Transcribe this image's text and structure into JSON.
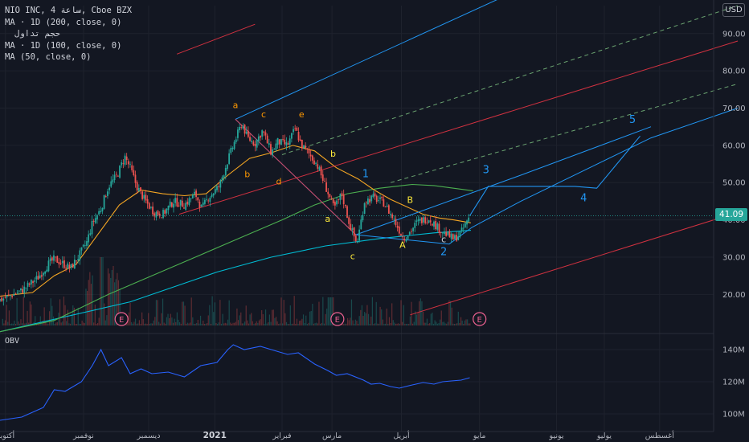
{
  "header": {
    "symbol_line": "NIO INC, 4 ساعة, Cboe BZX",
    "indicators": [
      "MA · 1D (200, close, 0)",
      "حجم تداول",
      "MA · 1D (100, close, 0)",
      "MA (50, close, 0)"
    ]
  },
  "currency_button": "USD",
  "obv_label": "OBV",
  "colors": {
    "background": "#131722",
    "candle_up": "#26a69a",
    "candle_down": "#ef5350",
    "ma50": "#f5a623",
    "ma100": "#4caf50",
    "ma200": "#00bcd4",
    "obv": "#2962ff",
    "pitchfork_blue": "#2196f3",
    "pitchfork_red": "#f23645",
    "wave_orange": "#ff9800",
    "wave_yellow": "#ffeb3b",
    "wave_blue": "#2196f3"
  },
  "chart_data": [
    {
      "type": "candlestick",
      "title": "NIO INC, 4 ساعة, Cboe BZX",
      "y_axis": {
        "side": "right",
        "ylim": [
          9.5,
          97.5
        ],
        "ticks": [
          20,
          30,
          40,
          50,
          60,
          70,
          80,
          90
        ],
        "tick_labels": [
          "20.00",
          "30.00",
          "40.00",
          "50.00",
          "60.00",
          "70.00",
          "80.00",
          "90.00"
        ]
      },
      "x_axis": {
        "labels": [
          "أكتوبر",
          "نوفمبر",
          "ديسمبر",
          "2021",
          "فبراير",
          "مارس",
          "أبريل",
          "مايو",
          "يونيو",
          "يوليو",
          "أغسطس"
        ]
      },
      "last_price": "41.09",
      "price_path": [
        [
          0,
          18.5
        ],
        [
          0.8,
          19.5
        ],
        [
          2,
          21
        ],
        [
          3.5,
          24.5
        ],
        [
          4.4,
          28
        ],
        [
          5,
          29.5
        ],
        [
          5.8,
          28.2
        ],
        [
          6.5,
          27
        ],
        [
          7.2,
          30
        ],
        [
          8,
          34
        ],
        [
          8.5,
          39
        ],
        [
          9.3,
          43
        ],
        [
          10,
          49
        ],
        [
          10.8,
          52
        ],
        [
          11.5,
          57
        ],
        [
          12,
          54
        ],
        [
          12.6,
          49
        ],
        [
          13.4,
          45
        ],
        [
          14.2,
          42
        ],
        [
          15,
          41.5
        ],
        [
          16,
          45
        ],
        [
          17,
          44
        ],
        [
          18,
          47
        ],
        [
          18.6,
          43
        ],
        [
          19.2,
          46
        ],
        [
          20.2,
          49
        ],
        [
          21,
          56
        ],
        [
          21.5,
          60
        ],
        [
          22.3,
          66
        ],
        [
          22.8,
          62
        ],
        [
          23.5,
          60.5
        ],
        [
          24.2,
          64
        ],
        [
          25,
          58
        ],
        [
          25.6,
          61
        ],
        [
          26.5,
          60
        ],
        [
          27.2,
          64.5
        ],
        [
          27.8,
          60
        ],
        [
          28.4,
          58
        ],
        [
          29.2,
          55
        ],
        [
          30,
          49
        ],
        [
          30.8,
          43
        ],
        [
          31.5,
          47
        ],
        [
          32.2,
          39
        ],
        [
          32.9,
          33.5
        ],
        [
          33.6,
          45
        ],
        [
          34.4,
          46
        ],
        [
          35.4,
          44.5
        ],
        [
          36.3,
          40
        ],
        [
          37.2,
          35
        ],
        [
          37.7,
          36.5
        ],
        [
          38.5,
          39.5
        ],
        [
          39.5,
          40.5
        ],
        [
          40.5,
          37.5
        ],
        [
          41.2,
          36
        ],
        [
          41.8,
          34.8
        ],
        [
          42.5,
          36.5
        ],
        [
          43.3,
          41.1
        ]
      ],
      "series": [
        {
          "name": "MA · 1D (200, close, 0)",
          "points": [
            [
              0,
              10
            ],
            [
              12,
              18
            ],
            [
              20,
              26
            ],
            [
              25,
              30
            ],
            [
              30,
              33
            ],
            [
              35,
              35
            ],
            [
              40,
              36.5
            ],
            [
              43.4,
              37.2
            ]
          ]
        },
        {
          "name": "MA · 1D (100, close, 0)",
          "points": [
            [
              0,
              10
            ],
            [
              5,
              13
            ],
            [
              10,
              20
            ],
            [
              14,
              25
            ],
            [
              18,
              30
            ],
            [
              22,
              35
            ],
            [
              26,
              40
            ],
            [
              29,
              44
            ],
            [
              32,
              47
            ],
            [
              35,
              48.5
            ],
            [
              38,
              49.5
            ],
            [
              40,
              49.2
            ],
            [
              43.6,
              47.8
            ]
          ]
        },
        {
          "name": "MA (50, close, 0)",
          "points": [
            [
              0,
              19.5
            ],
            [
              3,
              20.5
            ],
            [
              5,
              25
            ],
            [
              7,
              28
            ],
            [
              9,
              36
            ],
            [
              11,
              44
            ],
            [
              13,
              48
            ],
            [
              15,
              47
            ],
            [
              17,
              46.5
            ],
            [
              19,
              47
            ],
            [
              21,
              52
            ],
            [
              23,
              56.5
            ],
            [
              25,
              58
            ],
            [
              27,
              60
            ],
            [
              29,
              58.5
            ],
            [
              31,
              54
            ],
            [
              33,
              51
            ],
            [
              34.5,
              48
            ],
            [
              36,
              45.5
            ],
            [
              37.5,
              43.5
            ],
            [
              39,
              41.5
            ],
            [
              40.5,
              40.5
            ],
            [
              41.8,
              40
            ],
            [
              43.4,
              39.2
            ]
          ]
        }
      ],
      "volume": {
        "ylim": [
          0,
          1
        ],
        "scale": "relative"
      },
      "earnings_markers": [
        {
          "label": "E",
          "x": 11.2
        },
        {
          "label": "E",
          "x": 31.1
        },
        {
          "label": "E",
          "x": 44.2
        }
      ],
      "pitchfork_blue": {
        "pivot": [
          21.7,
          67
        ],
        "upper_points": [
          [
            21.7,
            67
          ],
          [
            48,
            102
          ]
        ],
        "median_points": [
          [
            32.8,
            36
          ],
          [
            48,
            52
          ],
          [
            60,
            65
          ]
        ],
        "lower_points": [
          [
            32.8,
            36
          ],
          [
            41.4,
            33.5
          ],
          [
            43.5,
            38
          ],
          [
            48,
            45
          ],
          [
            60,
            62
          ],
          [
            68,
            70
          ]
        ]
      },
      "pitchfork_red": {
        "upper_line": [
          [
            16.3,
            84.5
          ],
          [
            23.5,
            92.5
          ]
        ],
        "median_line": [
          [
            16.5,
            41.5
          ],
          [
            68,
            88
          ]
        ],
        "lower_line": [
          [
            37.8,
            14.5
          ],
          [
            68,
            42
          ]
        ],
        "handle": [
          [
            21.7,
            67
          ],
          [
            32.8,
            36
          ]
        ]
      },
      "dashed_lines": [
        {
          "color": "green",
          "points": [
            [
              26,
              57.5
            ],
            [
              68,
              97.5
            ]
          ]
        },
        {
          "color": "green",
          "points": [
            [
              36,
              50
            ],
            [
              68,
              76.5
            ]
          ]
        }
      ],
      "wave_projection": [
        [
          43.3,
          41.1
        ],
        [
          45,
          49
        ],
        [
          53,
          49
        ],
        [
          55,
          48.5
        ],
        [
          59,
          62.5
        ]
      ],
      "annotations": [
        {
          "text": "a",
          "x": 21.7,
          "y": 70,
          "color": "orange"
        },
        {
          "text": "c",
          "x": 24.3,
          "y": 67.5,
          "color": "orange"
        },
        {
          "text": "e",
          "x": 27.8,
          "y": 67.5,
          "color": "orange"
        },
        {
          "text": "b",
          "x": 22.8,
          "y": 51.5,
          "color": "orange"
        },
        {
          "text": "d",
          "x": 25.7,
          "y": 49.5,
          "color": "orange"
        },
        {
          "text": "b",
          "x": 30.7,
          "y": 57,
          "color": "yellow"
        },
        {
          "text": "a",
          "x": 30.2,
          "y": 39.5,
          "color": "yellow"
        },
        {
          "text": "c",
          "x": 32.5,
          "y": 29.5,
          "color": "yellow"
        },
        {
          "text": "B",
          "x": 37.8,
          "y": 44.5,
          "color": "yellow"
        },
        {
          "text": "A",
          "x": 37.1,
          "y": 32.5,
          "color": "yellow"
        },
        {
          "text": "c",
          "x": 40.9,
          "y": 34,
          "color": "white"
        },
        {
          "text": "1",
          "x": 33.7,
          "y": 51.5,
          "color": "blue"
        },
        {
          "text": "2",
          "x": 40.9,
          "y": 30.5,
          "color": "blue"
        },
        {
          "text": "3",
          "x": 44.8,
          "y": 52.5,
          "color": "blue"
        },
        {
          "text": "4",
          "x": 53.8,
          "y": 45,
          "color": "blue"
        },
        {
          "text": "5",
          "x": 58.3,
          "y": 66,
          "color": "blue"
        }
      ]
    },
    {
      "type": "line",
      "title": "OBV",
      "y_axis": {
        "side": "right",
        "ylim": [
          89,
          150
        ],
        "ticks": [
          100,
          120,
          140
        ],
        "tick_labels": [
          "100M",
          "120M",
          "140M"
        ]
      },
      "series": [
        {
          "name": "OBV",
          "points": [
            [
              0,
              96
            ],
            [
              2,
              98
            ],
            [
              4,
              104
            ],
            [
              5,
              115
            ],
            [
              6,
              114
            ],
            [
              7.5,
              120
            ],
            [
              8.5,
              130
            ],
            [
              9.3,
              140
            ],
            [
              10,
              130
            ],
            [
              11.2,
              135
            ],
            [
              12,
              125
            ],
            [
              13,
              128
            ],
            [
              14,
              125
            ],
            [
              15.5,
              126
            ],
            [
              17,
              123
            ],
            [
              18.5,
              130
            ],
            [
              20,
              132
            ],
            [
              21,
              140
            ],
            [
              21.5,
              143
            ],
            [
              22.5,
              140
            ],
            [
              24,
              142
            ],
            [
              25,
              140
            ],
            [
              26.5,
              137
            ],
            [
              27.5,
              138
            ],
            [
              29,
              131
            ],
            [
              30.2,
              127
            ],
            [
              31,
              124
            ],
            [
              32,
              125
            ],
            [
              33.5,
              121
            ],
            [
              34.2,
              118.5
            ],
            [
              35,
              119
            ],
            [
              36,
              117
            ],
            [
              36.8,
              116
            ],
            [
              38,
              118
            ],
            [
              39,
              119.5
            ],
            [
              40,
              118.5
            ],
            [
              40.8,
              120
            ],
            [
              41.6,
              120.5
            ],
            [
              42.5,
              121
            ],
            [
              43.3,
              122.5
            ]
          ]
        }
      ]
    }
  ]
}
